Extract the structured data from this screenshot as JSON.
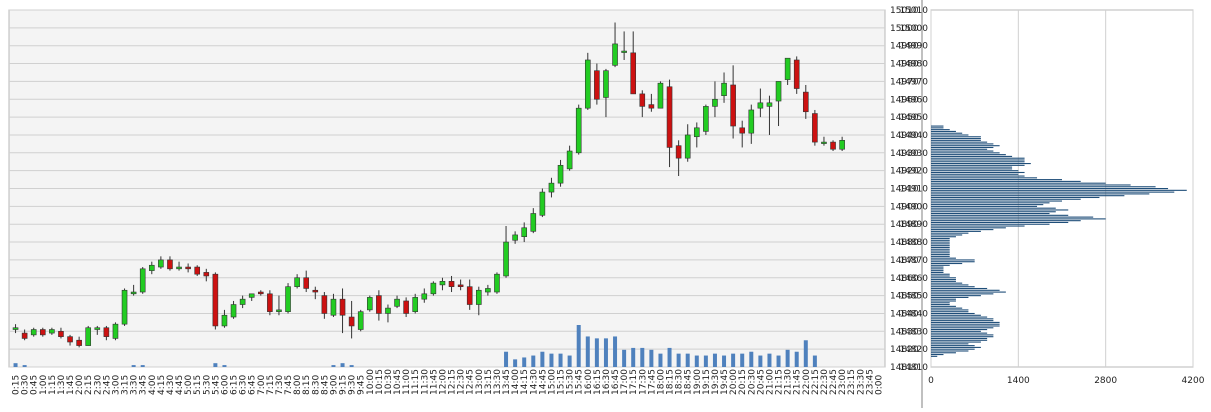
{
  "colors": {
    "plot_bg": "#f4f4f4",
    "grid": "#d0d0d0",
    "up_candle": "#22cc22",
    "down_candle": "#cc1111",
    "candle_outline": "#333333",
    "volume_bar": "#4f81bd",
    "profile_bar": "#1f4e79"
  },
  "chart_data": [
    {
      "type": "candlestick",
      "title": "",
      "ylim": [
        14810,
        15010
      ],
      "y_ticks": [
        "15010",
        "15000",
        "14990",
        "14980",
        "14970",
        "14960",
        "14950",
        "14940",
        "14930",
        "14920",
        "14910",
        "14900",
        "14890",
        "14880",
        "14870",
        "14860",
        "14850",
        "14840",
        "14830",
        "14820",
        "14810"
      ],
      "x_ticks": [
        "0:15",
        "0:30",
        "0:45",
        "1:00",
        "1:15",
        "1:30",
        "1:45",
        "2:00",
        "2:15",
        "2:30",
        "2:45",
        "3:00",
        "3:15",
        "3:30",
        "3:45",
        "4:00",
        "4:15",
        "4:30",
        "4:45",
        "5:00",
        "5:15",
        "5:30",
        "5:45",
        "6:00",
        "6:15",
        "6:30",
        "6:45",
        "7:00",
        "7:15",
        "7:30",
        "7:45",
        "8:00",
        "8:15",
        "8:30",
        "8:45",
        "9:00",
        "9:15",
        "9:30",
        "9:45",
        "10:00",
        "10:15",
        "10:30",
        "10:45",
        "11:00",
        "11:15",
        "11:30",
        "11:45",
        "12:00",
        "12:15",
        "12:30",
        "12:45",
        "13:00",
        "13:15",
        "13:30",
        "13:45",
        "14:00",
        "14:15",
        "14:30",
        "14:45",
        "15:00",
        "15:15",
        "15:30",
        "15:45",
        "16:00",
        "16:15",
        "16:30",
        "16:45",
        "17:00",
        "17:15",
        "17:30",
        "17:45",
        "18:00",
        "18:15",
        "18:30",
        "18:45",
        "19:00",
        "19:15",
        "19:30",
        "19:45",
        "20:00",
        "20:15",
        "20:30",
        "20:45",
        "21:00",
        "21:15",
        "21:30",
        "21:45",
        "22:00",
        "22:15",
        "22:30",
        "22:45",
        "23:00",
        "23:15",
        "23:30",
        "23:45",
        "0:00"
      ],
      "candles": [
        {
          "o": 14831,
          "h": 14834,
          "l": 14829,
          "c": 14832
        },
        {
          "o": 14829,
          "h": 14831,
          "l": 14825,
          "c": 14826
        },
        {
          "o": 14828,
          "h": 14832,
          "l": 14827,
          "c": 14831
        },
        {
          "o": 14831,
          "h": 14832,
          "l": 14827,
          "c": 14828
        },
        {
          "o": 14829,
          "h": 14832,
          "l": 14828,
          "c": 14831
        },
        {
          "o": 14830,
          "h": 14832,
          "l": 14826,
          "c": 14827
        },
        {
          "o": 14827,
          "h": 14828,
          "l": 14822,
          "c": 14824
        },
        {
          "o": 14825,
          "h": 14827,
          "l": 14821,
          "c": 14822
        },
        {
          "o": 14822,
          "h": 14833,
          "l": 14822,
          "c": 14832
        },
        {
          "o": 14831,
          "h": 14833,
          "l": 14828,
          "c": 14832
        },
        {
          "o": 14832,
          "h": 14833,
          "l": 14825,
          "c": 14827
        },
        {
          "o": 14826,
          "h": 14835,
          "l": 14825,
          "c": 14834
        },
        {
          "o": 14834,
          "h": 14854,
          "l": 14833,
          "c": 14853
        },
        {
          "o": 14851,
          "h": 14856,
          "l": 14850,
          "c": 14852
        },
        {
          "o": 14852,
          "h": 14866,
          "l": 14851,
          "c": 14865
        },
        {
          "o": 14864,
          "h": 14869,
          "l": 14862,
          "c": 14867
        },
        {
          "o": 14866,
          "h": 14872,
          "l": 14865,
          "c": 14870
        },
        {
          "o": 14870,
          "h": 14872,
          "l": 14864,
          "c": 14865
        },
        {
          "o": 14865,
          "h": 14869,
          "l": 14864,
          "c": 14866
        },
        {
          "o": 14866,
          "h": 14868,
          "l": 14863,
          "c": 14865
        },
        {
          "o": 14866,
          "h": 14867,
          "l": 14861,
          "c": 14862
        },
        {
          "o": 14863,
          "h": 14865,
          "l": 14858,
          "c": 14861
        },
        {
          "o": 14862,
          "h": 14863,
          "l": 14831,
          "c": 14833
        },
        {
          "o": 14833,
          "h": 14842,
          "l": 14832,
          "c": 14839
        },
        {
          "o": 14838,
          "h": 14847,
          "l": 14837,
          "c": 14845
        },
        {
          "o": 14845,
          "h": 14850,
          "l": 14843,
          "c": 14848
        },
        {
          "o": 14849,
          "h": 14851,
          "l": 14847,
          "c": 14851
        },
        {
          "o": 14852,
          "h": 14853,
          "l": 14850,
          "c": 14851
        },
        {
          "o": 14851,
          "h": 14853,
          "l": 14839,
          "c": 14841
        },
        {
          "o": 14841,
          "h": 14850,
          "l": 14839,
          "c": 14842
        },
        {
          "o": 14841,
          "h": 14857,
          "l": 14840,
          "c": 14855
        },
        {
          "o": 14855,
          "h": 14862,
          "l": 14854,
          "c": 14860
        },
        {
          "o": 14860,
          "h": 14864,
          "l": 14852,
          "c": 14854
        },
        {
          "o": 14853,
          "h": 14855,
          "l": 14848,
          "c": 14852
        },
        {
          "o": 14850,
          "h": 14852,
          "l": 14837,
          "c": 14840
        },
        {
          "o": 14839,
          "h": 14851,
          "l": 14838,
          "c": 14848
        },
        {
          "o": 14848,
          "h": 14854,
          "l": 14829,
          "c": 14839
        },
        {
          "o": 14838,
          "h": 14847,
          "l": 14826,
          "c": 14833
        },
        {
          "o": 14831,
          "h": 14842,
          "l": 14830,
          "c": 14841
        },
        {
          "o": 14842,
          "h": 14850,
          "l": 14841,
          "c": 14849
        },
        {
          "o": 14850,
          "h": 14853,
          "l": 14836,
          "c": 14840
        },
        {
          "o": 14840,
          "h": 14845,
          "l": 14835,
          "c": 14843
        },
        {
          "o": 14844,
          "h": 14850,
          "l": 14843,
          "c": 14848
        },
        {
          "o": 14847,
          "h": 14849,
          "l": 14838,
          "c": 14840
        },
        {
          "o": 14841,
          "h": 14851,
          "l": 14840,
          "c": 14849
        },
        {
          "o": 14848,
          "h": 14854,
          "l": 14846,
          "c": 14851
        },
        {
          "o": 14851,
          "h": 14858,
          "l": 14850,
          "c": 14857
        },
        {
          "o": 14856,
          "h": 14860,
          "l": 14853,
          "c": 14858
        },
        {
          "o": 14858,
          "h": 14861,
          "l": 14852,
          "c": 14855
        },
        {
          "o": 14856,
          "h": 14859,
          "l": 14853,
          "c": 14855
        },
        {
          "o": 14855,
          "h": 14859,
          "l": 14842,
          "c": 14845
        },
        {
          "o": 14845,
          "h": 14855,
          "l": 14839,
          "c": 14853
        },
        {
          "o": 14852,
          "h": 14856,
          "l": 14850,
          "c": 14854
        },
        {
          "o": 14852,
          "h": 14863,
          "l": 14851,
          "c": 14862
        },
        {
          "o": 14861,
          "h": 14889,
          "l": 14860,
          "c": 14880
        },
        {
          "o": 14881,
          "h": 14886,
          "l": 14879,
          "c": 14884
        },
        {
          "o": 14883,
          "h": 14891,
          "l": 14880,
          "c": 14888
        },
        {
          "o": 14886,
          "h": 14899,
          "l": 14885,
          "c": 14896
        },
        {
          "o": 14895,
          "h": 14910,
          "l": 14894,
          "c": 14908
        },
        {
          "o": 14908,
          "h": 14916,
          "l": 14905,
          "c": 14913
        },
        {
          "o": 14913,
          "h": 14926,
          "l": 14911,
          "c": 14923
        },
        {
          "o": 14921,
          "h": 14934,
          "l": 14920,
          "c": 14931
        },
        {
          "o": 14930,
          "h": 14957,
          "l": 14929,
          "c": 14955
        },
        {
          "o": 14955,
          "h": 14986,
          "l": 14954,
          "c": 14982
        },
        {
          "o": 14976,
          "h": 14980,
          "l": 14957,
          "c": 14960
        },
        {
          "o": 14961,
          "h": 14977,
          "l": 14950,
          "c": 14976
        },
        {
          "o": 14979,
          "h": 15003,
          "l": 14978,
          "c": 14991
        },
        {
          "o": 14987,
          "h": 14998,
          "l": 14982,
          "c": 14987
        },
        {
          "o": 14986,
          "h": 14998,
          "l": 14963,
          "c": 14963
        },
        {
          "o": 14963,
          "h": 14965,
          "l": 14950,
          "c": 14956
        },
        {
          "o": 14957,
          "h": 14963,
          "l": 14953,
          "c": 14955
        },
        {
          "o": 14955,
          "h": 14970,
          "l": 14955,
          "c": 14969
        },
        {
          "o": 14967,
          "h": 14971,
          "l": 14922,
          "c": 14933
        },
        {
          "o": 14934,
          "h": 14937,
          "l": 14917,
          "c": 14927
        },
        {
          "o": 14927,
          "h": 14946,
          "l": 14925,
          "c": 14940
        },
        {
          "o": 14939,
          "h": 14947,
          "l": 14933,
          "c": 14944
        },
        {
          "o": 14942,
          "h": 14957,
          "l": 14940,
          "c": 14956
        },
        {
          "o": 14956,
          "h": 14970,
          "l": 14950,
          "c": 14960
        },
        {
          "o": 14962,
          "h": 14975,
          "l": 14958,
          "c": 14969
        },
        {
          "o": 14968,
          "h": 14979,
          "l": 14938,
          "c": 14945
        },
        {
          "o": 14944,
          "h": 14948,
          "l": 14933,
          "c": 14941
        },
        {
          "o": 14941,
          "h": 14957,
          "l": 14935,
          "c": 14954
        },
        {
          "o": 14955,
          "h": 14966,
          "l": 14950,
          "c": 14958
        },
        {
          "o": 14956,
          "h": 14962,
          "l": 14940,
          "c": 14958
        },
        {
          "o": 14959,
          "h": 14970,
          "l": 14945,
          "c": 14970
        },
        {
          "o": 14971,
          "h": 14983,
          "l": 14968,
          "c": 14983
        },
        {
          "o": 14982,
          "h": 14984,
          "l": 14963,
          "c": 14966
        },
        {
          "o": 14964,
          "h": 14968,
          "l": 14949,
          "c": 14953
        },
        {
          "o": 14952,
          "h": 14954,
          "l": 14934,
          "c": 14936
        },
        {
          "o": 14936,
          "h": 14939,
          "l": 14934,
          "c": 14936
        },
        {
          "o": 14936,
          "h": 14937,
          "l": 14931,
          "c": 14932
        },
        {
          "o": 14932,
          "h": 14939,
          "l": 14931,
          "c": 14937
        }
      ],
      "volumes": [
        200,
        100,
        0,
        0,
        0,
        0,
        0,
        0,
        0,
        0,
        0,
        0,
        0,
        100,
        100,
        0,
        0,
        0,
        0,
        0,
        0,
        0,
        200,
        100,
        0,
        0,
        0,
        0,
        0,
        0,
        0,
        0,
        0,
        0,
        0,
        100,
        200,
        100,
        0,
        0,
        0,
        0,
        0,
        0,
        0,
        0,
        0,
        0,
        0,
        0,
        0,
        0,
        0,
        0,
        800,
        400,
        500,
        600,
        800,
        700,
        700,
        600,
        2200,
        1600,
        1500,
        1500,
        1600,
        900,
        1000,
        1000,
        900,
        700,
        1000,
        700,
        700,
        600,
        600,
        700,
        600,
        700,
        700,
        800,
        600,
        700,
        600,
        900,
        800,
        1400,
        600,
        0,
        0,
        0,
        0
      ]
    },
    {
      "type": "bar",
      "orientation": "horizontal",
      "xlim": [
        0,
        4200
      ],
      "x_ticks": [
        "0",
        "1400",
        "2800",
        "4200"
      ],
      "ylim": [
        14810,
        15010
      ],
      "price_step": 1,
      "price_start": 14816,
      "values": [
        100,
        200,
        400,
        600,
        700,
        800,
        700,
        600,
        800,
        900,
        900,
        1000,
        1000,
        900,
        800,
        900,
        1000,
        1100,
        1100,
        1100,
        1000,
        1000,
        900,
        800,
        700,
        600,
        600,
        500,
        400,
        300,
        300,
        400,
        400,
        600,
        800,
        1000,
        1200,
        1100,
        900,
        700,
        600,
        500,
        400,
        400,
        400,
        300,
        300,
        200,
        200,
        200,
        200,
        300,
        500,
        700,
        700,
        400,
        300,
        300,
        300,
        300,
        300,
        300,
        300,
        300,
        300,
        300,
        300,
        400,
        500,
        600,
        800,
        1000,
        1200,
        1500,
        1900,
        2200,
        2400,
        2800,
        2600,
        2200,
        1900,
        2000,
        2200,
        2000,
        1700,
        1800,
        1900,
        2100,
        2400,
        2700,
        3100,
        3500,
        3900,
        4100,
        3800,
        3600,
        3200,
        2800,
        2400,
        2100,
        1700,
        1500,
        1400,
        1500,
        1400,
        1300,
        1300,
        1500,
        1600,
        1500,
        1500,
        1500,
        1300,
        1200,
        1100,
        1000,
        900,
        1000,
        1100,
        1000,
        900,
        800,
        800,
        800,
        600,
        500,
        400,
        300,
        200,
        200
      ]
    }
  ]
}
